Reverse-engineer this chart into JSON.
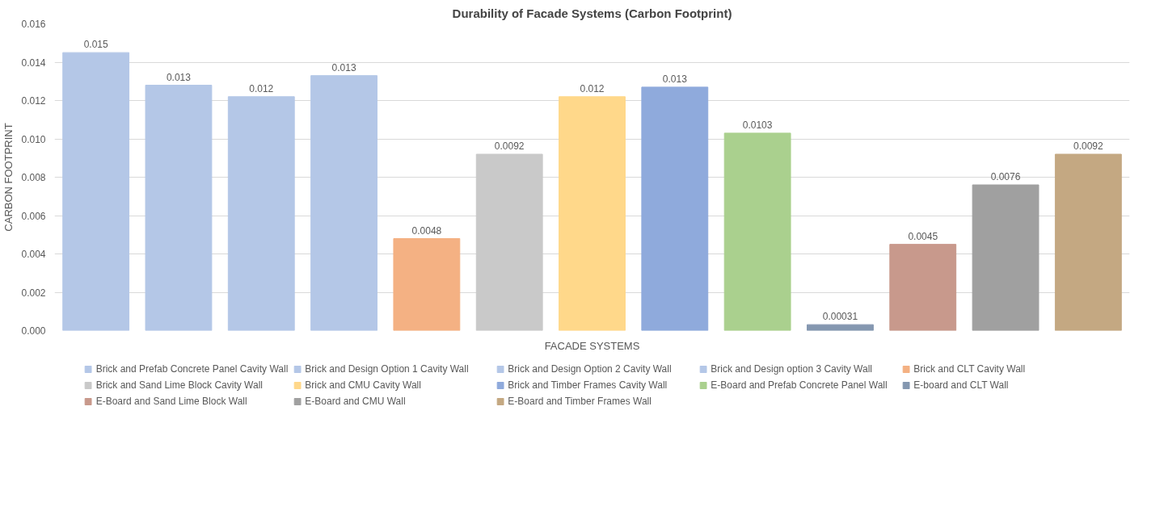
{
  "chart_data": {
    "type": "bar",
    "title": "Durability of Facade Systems (Carbon Footprint)",
    "xlabel": "FACADE SYSTEMS",
    "ylabel": "CARBON FOOTPRINT",
    "categories": [
      null,
      null,
      null,
      null,
      null,
      null,
      null,
      null,
      null,
      null,
      null,
      null,
      null
    ],
    "series": [
      {
        "name": "Brick and Prefab Concrete Panel Cavity Wall",
        "color": "#b4c7e7",
        "values": [
          0.0145,
          null,
          null,
          null,
          null,
          null,
          null,
          null,
          null,
          null,
          null,
          null,
          null
        ]
      },
      {
        "name": "Brick and Design Option 1 Cavity Wall",
        "color": "#b4c7e7",
        "values": [
          null,
          0.0128,
          null,
          null,
          null,
          null,
          null,
          null,
          null,
          null,
          null,
          null,
          null
        ]
      },
      {
        "name": "Brick and Design Option 2 Cavity Wall",
        "color": "#b4c7e7",
        "values": [
          null,
          null,
          0.0122,
          null,
          null,
          null,
          null,
          null,
          null,
          null,
          null,
          null,
          null
        ]
      },
      {
        "name": "Brick and Design option 3 Cavity Wall",
        "color": "#b4c7e7",
        "values": [
          null,
          null,
          null,
          0.0133,
          null,
          null,
          null,
          null,
          null,
          null,
          null,
          null,
          null
        ]
      },
      {
        "name": "Brick and CLT Cavity Wall",
        "color": "#f4b183",
        "values": [
          null,
          null,
          null,
          null,
          0.0048,
          null,
          null,
          null,
          null,
          null,
          null,
          null,
          null
        ]
      },
      {
        "name": "Brick and Sand Lime Block Cavity Wall",
        "color": "#c9c9c9",
        "values": [
          null,
          null,
          null,
          null,
          null,
          0.0092,
          null,
          null,
          null,
          null,
          null,
          null,
          null
        ]
      },
      {
        "name": "Brick and CMU Cavity Wall",
        "color": "#ffd88a",
        "values": [
          null,
          null,
          null,
          null,
          null,
          null,
          0.0122,
          null,
          null,
          null,
          null,
          null,
          null
        ]
      },
      {
        "name": "Brick and Timber Frames Cavity Wall",
        "color": "#8faadc",
        "values": [
          null,
          null,
          null,
          null,
          null,
          null,
          null,
          0.0127,
          null,
          null,
          null,
          null,
          null
        ]
      },
      {
        "name": "E-Board and Prefab Concrete Panel Wall",
        "color": "#aad08e",
        "values": [
          null,
          null,
          null,
          null,
          null,
          null,
          null,
          null,
          0.0103,
          null,
          null,
          null,
          null
        ]
      },
      {
        "name": "E-board and CLT Wall",
        "color": "#8497b0",
        "values": [
          null,
          null,
          null,
          null,
          null,
          null,
          null,
          null,
          null,
          0.00031,
          null,
          null,
          null
        ]
      },
      {
        "name": "E-Board and Sand Lime Block Wall",
        "color": "#c8998c",
        "values": [
          null,
          null,
          null,
          null,
          null,
          null,
          null,
          null,
          null,
          null,
          0.0045,
          null,
          null
        ]
      },
      {
        "name": "E-Board and CMU Wall",
        "color": "#a0a0a0",
        "values": [
          null,
          null,
          null,
          null,
          null,
          null,
          null,
          null,
          null,
          null,
          null,
          0.0076,
          null
        ]
      },
      {
        "name": "E-Board and Timber Frames Wall",
        "color": "#c4a882",
        "values": [
          null,
          null,
          null,
          null,
          null,
          null,
          null,
          null,
          null,
          null,
          null,
          null,
          0.0092
        ]
      }
    ],
    "value_labels": [
      "0.015",
      "0.013",
      "0.012",
      "0.013",
      "0.0048",
      "0.0092",
      "0.012",
      "0.013",
      "0.0103",
      "0.00031",
      "0.0045",
      "0.0076",
      "0.0092"
    ],
    "ylim": [
      0,
      0.016
    ],
    "yticks": [
      {
        "value": 0,
        "label": "0.000"
      },
      {
        "value": 0.002,
        "label": "0.002"
      },
      {
        "value": 0.004,
        "label": "0.004"
      },
      {
        "value": 0.006,
        "label": "0.006"
      },
      {
        "value": 0.008,
        "label": "0.008"
      },
      {
        "value": 0.01,
        "label": "0.010"
      },
      {
        "value": 0.012,
        "label": "0.012"
      },
      {
        "value": 0.014,
        "label": "0.014"
      },
      {
        "value": 0.016,
        "label": "0.016"
      }
    ],
    "grid": "y",
    "legend": "bottom",
    "tick_labels": "y"
  }
}
